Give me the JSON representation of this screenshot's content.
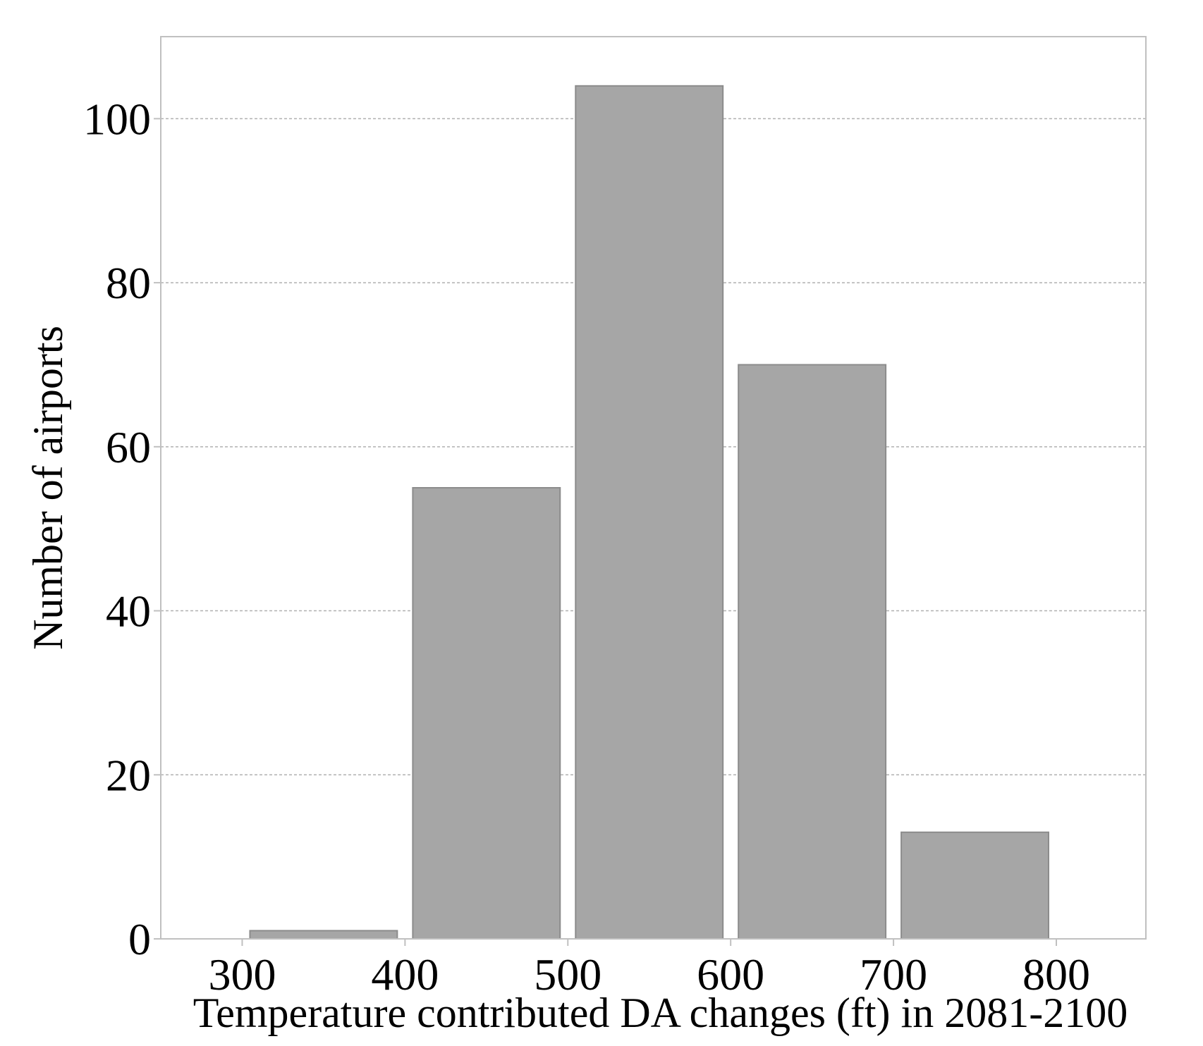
{
  "chart_data": {
    "type": "bar",
    "title": "",
    "xlabel": "Temperature contributed DA changes (ft) in 2081-2100",
    "ylabel": "Number of airports",
    "bins": [
      {
        "start": 300,
        "end": 400,
        "value": 1
      },
      {
        "start": 400,
        "end": 500,
        "value": 55
      },
      {
        "start": 500,
        "end": 600,
        "value": 104
      },
      {
        "start": 600,
        "end": 700,
        "value": 70
      },
      {
        "start": 700,
        "end": 800,
        "value": 13
      }
    ],
    "xlim": [
      250,
      855
    ],
    "ylim": [
      0,
      110
    ],
    "xticks": [
      300,
      400,
      500,
      600,
      700,
      800
    ],
    "xtick_labels": [
      "300",
      "400",
      "500",
      "600",
      "700",
      "800"
    ],
    "yticks": [
      0,
      20,
      40,
      60,
      80,
      100
    ],
    "ytick_labels": [
      "0",
      "20",
      "40",
      "60",
      "80",
      "100"
    ],
    "grid": "horizontal dashed",
    "legend": "none",
    "colors": {
      "bar_fill": "#a6a6a6",
      "bar_stroke": "#8c8c8c",
      "grid": "#b0b0b0",
      "frame": "#c0c0c0"
    }
  }
}
